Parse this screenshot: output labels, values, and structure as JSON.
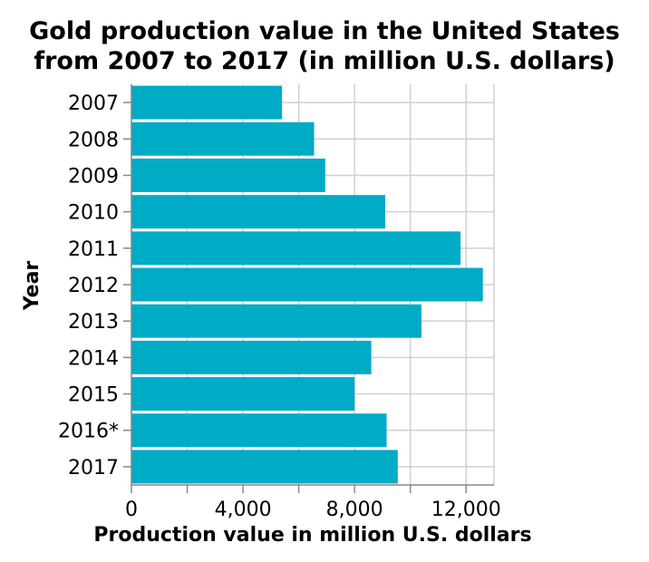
{
  "chart_data": {
    "type": "bar",
    "orientation": "horizontal",
    "title_line1": "Gold production value in the United States",
    "title_line2": "from 2007 to 2017 (in million U.S. dollars)",
    "xlabel": "Production value in million U.S. dollars",
    "ylabel": "Year",
    "categories": [
      "2007",
      "2008",
      "2009",
      "2010",
      "2011",
      "2012",
      "2013",
      "2014",
      "2015",
      "2016*",
      "2017"
    ],
    "values": [
      5400,
      6550,
      6950,
      9100,
      11800,
      12600,
      10400,
      8600,
      8000,
      9150,
      9550
    ],
    "xlim": [
      0,
      13000
    ],
    "xticks": [
      "0",
      "4,000",
      "8,000",
      "12,000"
    ],
    "xtick_values": [
      0,
      4000,
      8000,
      12000
    ],
    "grid": true,
    "legend": "none",
    "bar_color": "#00abc5"
  }
}
